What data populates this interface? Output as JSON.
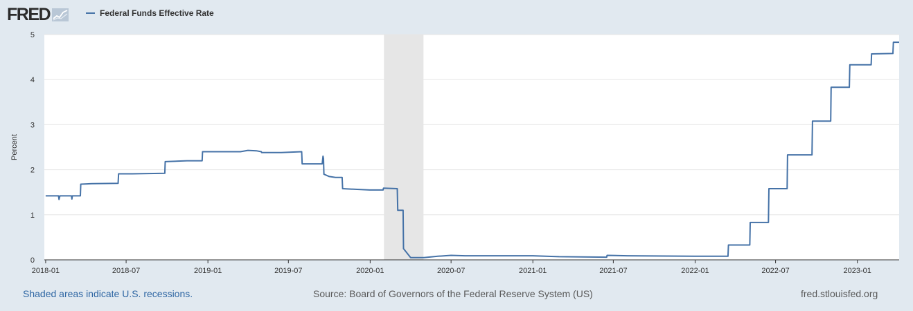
{
  "header": {
    "logo_text": "FRED",
    "logo_mark": "fred-graph-icon"
  },
  "colors": {
    "background": "#e1e9f0",
    "plot_background": "#ffffff",
    "series": "#4572a7",
    "recession_shade": "#e6e6e6",
    "grid": "#e6e6e6"
  },
  "chart_data": {
    "type": "line",
    "series": [
      {
        "name": "Federal Funds Effective Rate",
        "points": [
          [
            "2018-01-01",
            1.42
          ],
          [
            "2018-01-30",
            1.42
          ],
          [
            "2018-01-31",
            1.34
          ],
          [
            "2018-02-02",
            1.42
          ],
          [
            "2018-02-28",
            1.42
          ],
          [
            "2018-03-01",
            1.35
          ],
          [
            "2018-03-02",
            1.42
          ],
          [
            "2018-03-20",
            1.42
          ],
          [
            "2018-03-21",
            1.68
          ],
          [
            "2018-04-15",
            1.69
          ],
          [
            "2018-06-13",
            1.7
          ],
          [
            "2018-06-14",
            1.91
          ],
          [
            "2018-07-15",
            1.91
          ],
          [
            "2018-09-26",
            1.92
          ],
          [
            "2018-09-27",
            2.18
          ],
          [
            "2018-11-15",
            2.2
          ],
          [
            "2018-12-19",
            2.2
          ],
          [
            "2018-12-20",
            2.4
          ],
          [
            "2019-03-15",
            2.4
          ],
          [
            "2019-04-01",
            2.43
          ],
          [
            "2019-04-20",
            2.42
          ],
          [
            "2019-05-01",
            2.4
          ],
          [
            "2019-05-02",
            2.38
          ],
          [
            "2019-06-15",
            2.38
          ],
          [
            "2019-07-31",
            2.4
          ],
          [
            "2019-08-01",
            2.13
          ],
          [
            "2019-09-15",
            2.13
          ],
          [
            "2019-09-17",
            2.3
          ],
          [
            "2019-09-18",
            2.25
          ],
          [
            "2019-09-19",
            1.9
          ],
          [
            "2019-10-01",
            1.85
          ],
          [
            "2019-10-15",
            1.83
          ],
          [
            "2019-10-30",
            1.83
          ],
          [
            "2019-10-31",
            1.58
          ],
          [
            "2019-12-31",
            1.55
          ],
          [
            "2020-01-30",
            1.55
          ],
          [
            "2020-01-31",
            1.59
          ],
          [
            "2020-03-02",
            1.58
          ],
          [
            "2020-03-03",
            1.1
          ],
          [
            "2020-03-15",
            1.1
          ],
          [
            "2020-03-16",
            0.25
          ],
          [
            "2020-04-01",
            0.05
          ],
          [
            "2020-05-01",
            0.05
          ],
          [
            "2020-06-01",
            0.08
          ],
          [
            "2020-07-01",
            0.1
          ],
          [
            "2020-08-01",
            0.09
          ],
          [
            "2020-12-01",
            0.09
          ],
          [
            "2021-01-01",
            0.09
          ],
          [
            "2021-03-01",
            0.07
          ],
          [
            "2021-06-16",
            0.06
          ],
          [
            "2021-06-17",
            0.1
          ],
          [
            "2021-08-01",
            0.09
          ],
          [
            "2021-12-31",
            0.08
          ],
          [
            "2022-03-16",
            0.08
          ],
          [
            "2022-03-17",
            0.33
          ],
          [
            "2022-05-04",
            0.33
          ],
          [
            "2022-05-05",
            0.83
          ],
          [
            "2022-06-15",
            0.83
          ],
          [
            "2022-06-16",
            1.58
          ],
          [
            "2022-07-27",
            1.58
          ],
          [
            "2022-07-28",
            2.33
          ],
          [
            "2022-09-21",
            2.33
          ],
          [
            "2022-09-22",
            3.08
          ],
          [
            "2022-11-02",
            3.08
          ],
          [
            "2022-11-03",
            3.83
          ],
          [
            "2022-12-14",
            3.83
          ],
          [
            "2022-12-15",
            4.33
          ],
          [
            "2023-02-01",
            4.33
          ],
          [
            "2023-02-02",
            4.57
          ],
          [
            "2023-03-22",
            4.58
          ],
          [
            "2023-03-23",
            4.83
          ],
          [
            "2023-04-05",
            4.83
          ]
        ]
      }
    ],
    "recessions": [
      [
        "2020-02-01",
        "2020-04-30"
      ]
    ],
    "x_range": [
      "2017-12-29",
      "2023-04-05"
    ],
    "x_ticks": [
      "2018-01",
      "2018-07",
      "2019-01",
      "2019-07",
      "2020-01",
      "2020-07",
      "2021-01",
      "2021-07",
      "2022-01",
      "2022-07",
      "2023-01"
    ],
    "y_ticks": [
      "0",
      "1",
      "2",
      "3",
      "4",
      "5"
    ],
    "ylim": [
      0,
      5
    ],
    "ylabel": "Percent",
    "grid": "horizontal",
    "legend_position": "top-left"
  },
  "footer": {
    "recession_note": "Shaded areas indicate U.S. recessions.",
    "source": "Source: Board of Governors of the Federal Reserve System (US)",
    "site": "fred.stlouisfed.org"
  }
}
